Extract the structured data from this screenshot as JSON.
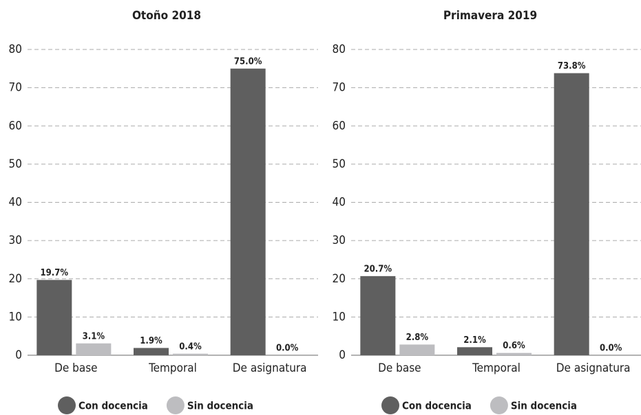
{
  "chart_data": [
    {
      "type": "bar",
      "title": "Otoño 2018",
      "categories": [
        "De base",
        "Temporal",
        "De asignatura"
      ],
      "series": [
        {
          "name": "Con docencia",
          "color": "#5f5f5f",
          "values": [
            19.7,
            1.9,
            75.0
          ],
          "value_labels": [
            "19.7%",
            "1.9%",
            "75.0%"
          ]
        },
        {
          "name": "Sin docencia",
          "color": "#bdbdc0",
          "values": [
            3.1,
            0.4,
            0.0
          ],
          "value_labels": [
            "3.1%",
            "0.4%",
            "0.0%"
          ]
        }
      ],
      "ylim": [
        0,
        80
      ],
      "yticks": [
        0,
        10,
        20,
        30,
        40,
        50,
        60,
        70,
        80
      ],
      "grid": true,
      "legend": "bottom"
    },
    {
      "type": "bar",
      "title": "Primavera 2019",
      "categories": [
        "De base",
        "Temporal",
        "De asignatura"
      ],
      "series": [
        {
          "name": "Con docencia",
          "color": "#5f5f5f",
          "values": [
            20.7,
            2.1,
            73.8
          ],
          "value_labels": [
            "20.7%",
            "2.1%",
            "73.8%"
          ]
        },
        {
          "name": "Sin docencia",
          "color": "#bdbdc0",
          "values": [
            2.8,
            0.6,
            0.0
          ],
          "value_labels": [
            "2.8%",
            "0.6%",
            "0.0%"
          ]
        }
      ],
      "ylim": [
        0,
        80
      ],
      "yticks": [
        0,
        10,
        20,
        30,
        40,
        50,
        60,
        70,
        80
      ],
      "grid": true,
      "legend": "bottom"
    }
  ]
}
